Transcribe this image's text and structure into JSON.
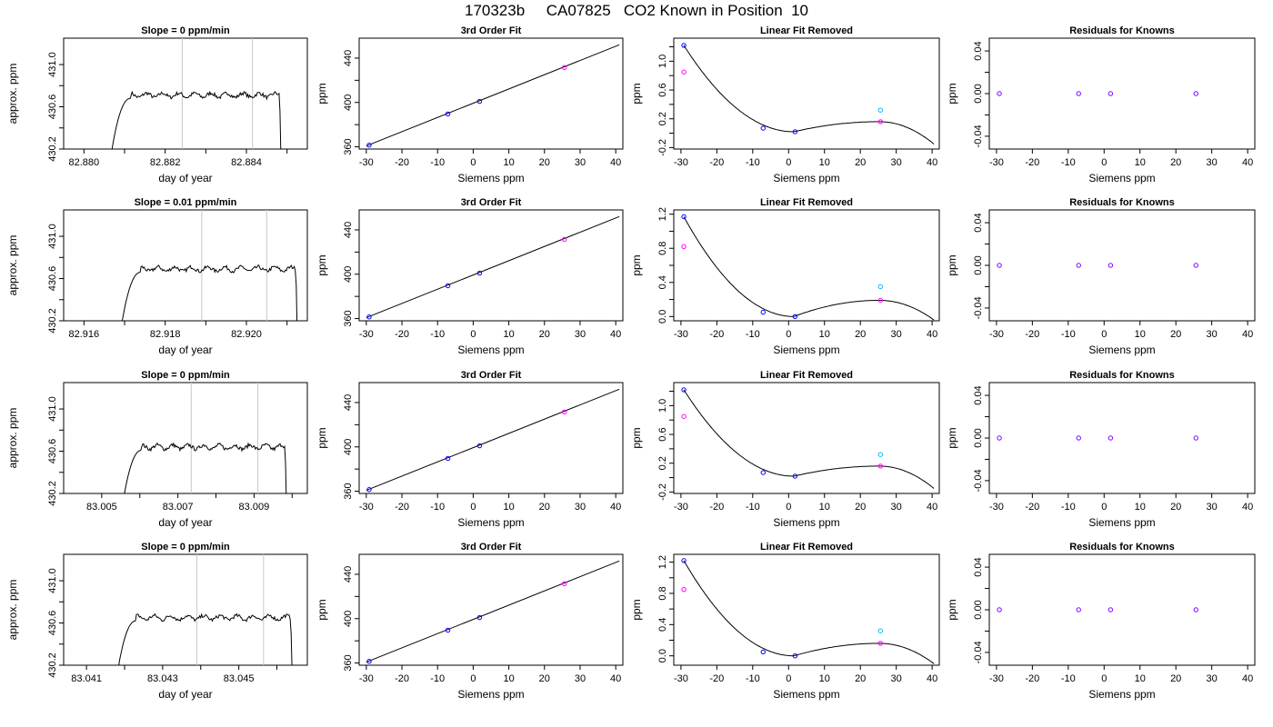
{
  "page": {
    "title": "170323b     CA07825   CO2 Known in Position  10"
  },
  "colors": {
    "line": "#000000",
    "refline": "#c8c8c8",
    "point_blue": "#0000ff",
    "point_magenta": "#ff00ff",
    "point_cyan": "#00bfff",
    "point_purple": "#8000ff"
  },
  "chart_data": [
    {
      "row": 1,
      "col": 1,
      "type": "line",
      "title": "Slope =  0  ppm/min",
      "xlabel": "day of year",
      "ylabel": "approx. ppm",
      "xlim": [
        82.8795,
        82.8855
      ],
      "ylim": [
        430.2,
        431.25
      ],
      "xticks": [
        82.88,
        82.881,
        82.882,
        82.883,
        82.884,
        82.885
      ],
      "xtick_labels": [
        "82.880",
        "",
        "82.882",
        "",
        "82.884",
        ""
      ],
      "yticks": [
        430.2,
        430.4,
        430.6,
        430.8,
        431.0
      ],
      "ytick_labels": [
        "430.2",
        "",
        "430.6",
        "",
        "431.0"
      ],
      "vlines": [
        82.88242,
        82.88415
      ],
      "trace": {
        "x0": 82.88065,
        "rise_end": 82.88115,
        "x_end": 82.88485,
        "level": 430.71
      }
    },
    {
      "row": 1,
      "col": 2,
      "type": "line",
      "title": "3rd Order Fit",
      "xlabel": "Siemens ppm",
      "ylabel": "ppm",
      "xlim": [
        -32,
        42
      ],
      "ylim": [
        358,
        458
      ],
      "xticks": [
        -30,
        -20,
        -10,
        0,
        10,
        20,
        30,
        40
      ],
      "xtick_labels": [
        "-30",
        "-20",
        "-10",
        "0",
        "10",
        "20",
        "30",
        "40"
      ],
      "yticks": [
        360,
        380,
        400,
        420,
        440
      ],
      "ytick_labels": [
        "360",
        "",
        "400",
        "",
        "440"
      ],
      "fit_line": {
        "x": [
          -30,
          41
        ],
        "y": [
          360.8,
          452.0
        ]
      },
      "points": [
        {
          "x": -29.2,
          "y": 361.5,
          "color": "blue"
        },
        {
          "x": -7.1,
          "y": 389.6,
          "color": "blue"
        },
        {
          "x": 1.8,
          "y": 401.0,
          "color": "blue"
        },
        {
          "x": 25.6,
          "y": 431.5,
          "color": "magenta"
        }
      ]
    },
    {
      "row": 1,
      "col": 3,
      "type": "line",
      "title": "Linear Fit Removed",
      "xlabel": "Siemens ppm",
      "ylabel": "ppm",
      "xlim": [
        -32,
        42
      ],
      "ylim": [
        -0.22,
        1.32
      ],
      "xticks": [
        -30,
        -20,
        -10,
        0,
        10,
        20,
        30,
        40
      ],
      "xtick_labels": [
        "-30",
        "-20",
        "-10",
        "0",
        "10",
        "20",
        "30",
        "40"
      ],
      "yticks": [
        -0.2,
        0.0,
        0.2,
        0.4,
        0.6,
        0.8,
        1.0,
        1.2
      ],
      "ytick_labels": [
        "-0.2",
        "",
        "0.2",
        "",
        "0.6",
        "",
        "1.0",
        ""
      ],
      "curve": {
        "a": 1.22,
        "xr": 1.5,
        "yr": 0.02,
        "xp": 25.3,
        "yp": 0.16,
        "xe": 40.5,
        "ye": -0.15
      },
      "points": [
        {
          "x": -29.2,
          "y": 1.22,
          "color": "blue"
        },
        {
          "x": -29.2,
          "y": 0.85,
          "color": "magenta"
        },
        {
          "x": -7.1,
          "y": 0.07,
          "color": "blue"
        },
        {
          "x": 1.8,
          "y": 0.02,
          "color": "blue"
        },
        {
          "x": 25.6,
          "y": 0.32,
          "color": "cyan"
        },
        {
          "x": 25.6,
          "y": 0.16,
          "color": "magenta"
        }
      ]
    },
    {
      "row": 1,
      "col": 4,
      "type": "scatter",
      "title": "Residuals for Knowns",
      "xlabel": "Siemens ppm",
      "ylabel": "ppm",
      "xlim": [
        -32,
        42
      ],
      "ylim": [
        -0.052,
        0.052
      ],
      "xticks": [
        -30,
        -20,
        -10,
        0,
        10,
        20,
        30,
        40
      ],
      "xtick_labels": [
        "-30",
        "-20",
        "-10",
        "0",
        "10",
        "20",
        "30",
        "40"
      ],
      "yticks": [
        -0.04,
        -0.02,
        0.0,
        0.02,
        0.04
      ],
      "ytick_labels": [
        "-0.04",
        "",
        "0.00",
        "",
        "0.04"
      ],
      "points": [
        {
          "x": -29.2,
          "y": 0,
          "color": "purple"
        },
        {
          "x": -7.1,
          "y": 0,
          "color": "purple"
        },
        {
          "x": 1.8,
          "y": 0,
          "color": "purple"
        },
        {
          "x": 25.6,
          "y": 0,
          "color": "purple"
        }
      ]
    },
    {
      "row": 2,
      "col": 1,
      "type": "line",
      "title": "Slope =  0.01  ppm/min",
      "xlabel": "day of year",
      "ylabel": "approx. ppm",
      "xlim": [
        82.9155,
        82.9215
      ],
      "ylim": [
        430.2,
        431.25
      ],
      "xticks": [
        82.916,
        82.917,
        82.918,
        82.919,
        82.92,
        82.921
      ],
      "xtick_labels": [
        "82.916",
        "",
        "82.918",
        "",
        "82.920",
        ""
      ],
      "yticks": [
        430.2,
        430.4,
        430.6,
        430.8,
        431.0
      ],
      "ytick_labels": [
        "430.2",
        "",
        "430.6",
        "",
        "431.0"
      ],
      "vlines": [
        82.9189,
        82.9205
      ],
      "trace": {
        "x0": 82.9169,
        "rise_end": 82.9174,
        "x_end": 82.92125,
        "level": 430.69
      }
    },
    {
      "row": 2,
      "col": 2,
      "type": "line",
      "title": "3rd Order Fit",
      "xlabel": "Siemens ppm",
      "ylabel": "ppm",
      "xlim": [
        -32,
        42
      ],
      "ylim": [
        358,
        458
      ],
      "xticks": [
        -30,
        -20,
        -10,
        0,
        10,
        20,
        30,
        40
      ],
      "xtick_labels": [
        "-30",
        "-20",
        "-10",
        "0",
        "10",
        "20",
        "30",
        "40"
      ],
      "yticks": [
        360,
        380,
        400,
        420,
        440
      ],
      "ytick_labels": [
        "360",
        "",
        "400",
        "",
        "440"
      ],
      "fit_line": {
        "x": [
          -30,
          41
        ],
        "y": [
          360.8,
          452.0
        ]
      },
      "points": [
        {
          "x": -29.2,
          "y": 361.5,
          "color": "blue"
        },
        {
          "x": -7.1,
          "y": 389.6,
          "color": "blue"
        },
        {
          "x": 1.8,
          "y": 401.0,
          "color": "blue"
        },
        {
          "x": 25.6,
          "y": 431.5,
          "color": "magenta"
        }
      ]
    },
    {
      "row": 2,
      "col": 3,
      "type": "line",
      "title": "Linear Fit Removed",
      "xlabel": "Siemens ppm",
      "ylabel": "ppm",
      "xlim": [
        -32,
        42
      ],
      "ylim": [
        -0.05,
        1.25
      ],
      "xticks": [
        -30,
        -20,
        -10,
        0,
        10,
        20,
        30,
        40
      ],
      "xtick_labels": [
        "-30",
        "-20",
        "-10",
        "0",
        "10",
        "20",
        "30",
        "40"
      ],
      "yticks": [
        0.0,
        0.2,
        0.4,
        0.6,
        0.8,
        1.0,
        1.2
      ],
      "ytick_labels": [
        "0.0",
        "",
        "0.4",
        "",
        "0.8",
        "",
        "1.2"
      ],
      "curve": {
        "a": 1.17,
        "xr": 1.5,
        "yr": 0.0,
        "xp": 25.3,
        "yp": 0.19,
        "xe": 40.5,
        "ye": -0.04
      },
      "points": [
        {
          "x": -29.2,
          "y": 1.17,
          "color": "blue"
        },
        {
          "x": -29.2,
          "y": 0.82,
          "color": "magenta"
        },
        {
          "x": -7.1,
          "y": 0.05,
          "color": "blue"
        },
        {
          "x": 1.8,
          "y": 0.0,
          "color": "blue"
        },
        {
          "x": 25.6,
          "y": 0.35,
          "color": "cyan"
        },
        {
          "x": 25.6,
          "y": 0.19,
          "color": "magenta"
        }
      ]
    },
    {
      "row": 2,
      "col": 4,
      "type": "scatter",
      "title": "Residuals for Knowns",
      "xlabel": "Siemens ppm",
      "ylabel": "ppm",
      "xlim": [
        -32,
        42
      ],
      "ylim": [
        -0.052,
        0.052
      ],
      "xticks": [
        -30,
        -20,
        -10,
        0,
        10,
        20,
        30,
        40
      ],
      "xtick_labels": [
        "-30",
        "-20",
        "-10",
        "0",
        "10",
        "20",
        "30",
        "40"
      ],
      "yticks": [
        -0.04,
        -0.02,
        0.0,
        0.02,
        0.04
      ],
      "ytick_labels": [
        "-0.04",
        "",
        "0.00",
        "",
        "0.04"
      ],
      "points": [
        {
          "x": -29.2,
          "y": 0,
          "color": "purple"
        },
        {
          "x": -7.1,
          "y": 0,
          "color": "purple"
        },
        {
          "x": 1.8,
          "y": 0,
          "color": "purple"
        },
        {
          "x": 25.6,
          "y": 0,
          "color": "purple"
        }
      ]
    },
    {
      "row": 3,
      "col": 1,
      "type": "line",
      "title": "Slope =  0  ppm/min",
      "xlabel": "day of year",
      "ylabel": "approx. ppm",
      "xlim": [
        83.004,
        83.0104
      ],
      "ylim": [
        430.2,
        431.25
      ],
      "xticks": [
        83.005,
        83.006,
        83.007,
        83.008,
        83.009,
        83.01
      ],
      "xtick_labels": [
        "83.005",
        "",
        "83.007",
        "",
        "83.009",
        ""
      ],
      "yticks": [
        430.2,
        430.4,
        430.6,
        430.8,
        431.0
      ],
      "ytick_labels": [
        "430.2",
        "",
        "430.6",
        "",
        "431.0"
      ],
      "vlines": [
        83.00735,
        83.0091
      ],
      "trace": {
        "x0": 83.00555,
        "rise_end": 83.00605,
        "x_end": 83.00985,
        "level": 430.64
      }
    },
    {
      "row": 3,
      "col": 2,
      "type": "line",
      "title": "3rd Order Fit",
      "xlabel": "Siemens ppm",
      "ylabel": "ppm",
      "xlim": [
        -32,
        42
      ],
      "ylim": [
        358,
        458
      ],
      "xticks": [
        -30,
        -20,
        -10,
        0,
        10,
        20,
        30,
        40
      ],
      "xtick_labels": [
        "-30",
        "-20",
        "-10",
        "0",
        "10",
        "20",
        "30",
        "40"
      ],
      "yticks": [
        360,
        380,
        400,
        420,
        440
      ],
      "ytick_labels": [
        "360",
        "",
        "400",
        "",
        "440"
      ],
      "fit_line": {
        "x": [
          -30,
          41
        ],
        "y": [
          360.8,
          452.0
        ]
      },
      "points": [
        {
          "x": -29.2,
          "y": 361.5,
          "color": "blue"
        },
        {
          "x": -7.1,
          "y": 389.6,
          "color": "blue"
        },
        {
          "x": 1.8,
          "y": 401.0,
          "color": "blue"
        },
        {
          "x": 25.6,
          "y": 431.5,
          "color": "magenta"
        }
      ]
    },
    {
      "row": 3,
      "col": 3,
      "type": "line",
      "title": "Linear Fit Removed",
      "xlabel": "Siemens ppm",
      "ylabel": "ppm",
      "xlim": [
        -32,
        42
      ],
      "ylim": [
        -0.22,
        1.32
      ],
      "xticks": [
        -30,
        -20,
        -10,
        0,
        10,
        20,
        30,
        40
      ],
      "xtick_labels": [
        "-30",
        "-20",
        "-10",
        "0",
        "10",
        "20",
        "30",
        "40"
      ],
      "yticks": [
        -0.2,
        0.0,
        0.2,
        0.4,
        0.6,
        0.8,
        1.0,
        1.2
      ],
      "ytick_labels": [
        "-0.2",
        "",
        "0.2",
        "",
        "0.6",
        "",
        "1.0",
        ""
      ],
      "curve": {
        "a": 1.22,
        "xr": 1.5,
        "yr": 0.02,
        "xp": 25.3,
        "yp": 0.16,
        "xe": 40.5,
        "ye": -0.15
      },
      "points": [
        {
          "x": -29.2,
          "y": 1.22,
          "color": "blue"
        },
        {
          "x": -29.2,
          "y": 0.85,
          "color": "magenta"
        },
        {
          "x": -7.1,
          "y": 0.07,
          "color": "blue"
        },
        {
          "x": 1.8,
          "y": 0.02,
          "color": "blue"
        },
        {
          "x": 25.6,
          "y": 0.32,
          "color": "cyan"
        },
        {
          "x": 25.6,
          "y": 0.16,
          "color": "magenta"
        }
      ]
    },
    {
      "row": 3,
      "col": 4,
      "type": "scatter",
      "title": "Residuals for Knowns",
      "xlabel": "Siemens ppm",
      "ylabel": "ppm",
      "xlim": [
        -32,
        42
      ],
      "ylim": [
        -0.052,
        0.052
      ],
      "xticks": [
        -30,
        -20,
        -10,
        0,
        10,
        20,
        30,
        40
      ],
      "xtick_labels": [
        "-30",
        "-20",
        "-10",
        "0",
        "10",
        "20",
        "30",
        "40"
      ],
      "yticks": [
        -0.04,
        -0.02,
        0.0,
        0.02,
        0.04
      ],
      "ytick_labels": [
        "-0.04",
        "",
        "0.00",
        "",
        "0.04"
      ],
      "points": [
        {
          "x": -29.2,
          "y": 0,
          "color": "purple"
        },
        {
          "x": -7.1,
          "y": 0,
          "color": "purple"
        },
        {
          "x": 1.8,
          "y": 0,
          "color": "purple"
        },
        {
          "x": 25.6,
          "y": 0,
          "color": "purple"
        }
      ]
    },
    {
      "row": 4,
      "col": 1,
      "type": "line",
      "title": "Slope =  0  ppm/min",
      "xlabel": "day of year",
      "ylabel": "approx. ppm",
      "xlim": [
        83.0404,
        83.0468
      ],
      "ylim": [
        430.2,
        431.25
      ],
      "xticks": [
        83.041,
        83.042,
        83.043,
        83.044,
        83.045,
        83.046
      ],
      "xtick_labels": [
        "83.041",
        "",
        "83.043",
        "",
        "83.045",
        ""
      ],
      "yticks": [
        430.2,
        430.4,
        430.6,
        430.8,
        431.0
      ],
      "ytick_labels": [
        "430.2",
        "",
        "430.6",
        "",
        "431.0"
      ],
      "vlines": [
        83.0439,
        83.04565
      ],
      "trace": {
        "x0": 83.0418,
        "rise_end": 83.0423,
        "x_end": 83.0464,
        "level": 430.65
      }
    },
    {
      "row": 4,
      "col": 2,
      "type": "line",
      "title": "3rd Order Fit",
      "xlabel": "Siemens ppm",
      "ylabel": "ppm",
      "xlim": [
        -32,
        42
      ],
      "ylim": [
        358,
        458
      ],
      "xticks": [
        -30,
        -20,
        -10,
        0,
        10,
        20,
        30,
        40
      ],
      "xtick_labels": [
        "-30",
        "-20",
        "-10",
        "0",
        "10",
        "20",
        "30",
        "40"
      ],
      "yticks": [
        360,
        380,
        400,
        420,
        440
      ],
      "ytick_labels": [
        "360",
        "",
        "400",
        "",
        "440"
      ],
      "fit_line": {
        "x": [
          -30,
          41
        ],
        "y": [
          360.8,
          452.0
        ]
      },
      "points": [
        {
          "x": -29.2,
          "y": 361.5,
          "color": "blue"
        },
        {
          "x": -7.1,
          "y": 389.6,
          "color": "blue"
        },
        {
          "x": 1.8,
          "y": 401.0,
          "color": "blue"
        },
        {
          "x": 25.6,
          "y": 431.5,
          "color": "magenta"
        }
      ]
    },
    {
      "row": 4,
      "col": 3,
      "type": "line",
      "title": "Linear Fit Removed",
      "xlabel": "Siemens ppm",
      "ylabel": "ppm",
      "xlim": [
        -32,
        42
      ],
      "ylim": [
        -0.12,
        1.3
      ],
      "xticks": [
        -30,
        -20,
        -10,
        0,
        10,
        20,
        30,
        40
      ],
      "xtick_labels": [
        "-30",
        "-20",
        "-10",
        "0",
        "10",
        "20",
        "30",
        "40"
      ],
      "yticks": [
        0.0,
        0.2,
        0.4,
        0.6,
        0.8,
        1.0,
        1.2
      ],
      "ytick_labels": [
        "0.0",
        "",
        "0.4",
        "",
        "0.8",
        "",
        "1.2"
      ],
      "curve": {
        "a": 1.22,
        "xr": 1.5,
        "yr": 0.0,
        "xp": 25.3,
        "yp": 0.16,
        "xe": 40.5,
        "ye": -0.1
      },
      "points": [
        {
          "x": -29.2,
          "y": 1.22,
          "color": "blue"
        },
        {
          "x": -29.2,
          "y": 0.85,
          "color": "magenta"
        },
        {
          "x": -7.1,
          "y": 0.05,
          "color": "blue"
        },
        {
          "x": 1.8,
          "y": 0.0,
          "color": "blue"
        },
        {
          "x": 25.6,
          "y": 0.32,
          "color": "cyan"
        },
        {
          "x": 25.6,
          "y": 0.16,
          "color": "magenta"
        }
      ]
    },
    {
      "row": 4,
      "col": 4,
      "type": "scatter",
      "title": "Residuals for Knowns",
      "xlabel": "Siemens ppm",
      "ylabel": "ppm",
      "xlim": [
        -32,
        42
      ],
      "ylim": [
        -0.052,
        0.052
      ],
      "xticks": [
        -30,
        -20,
        -10,
        0,
        10,
        20,
        30,
        40
      ],
      "xtick_labels": [
        "-30",
        "-20",
        "-10",
        "0",
        "10",
        "20",
        "30",
        "40"
      ],
      "yticks": [
        -0.04,
        -0.02,
        0.0,
        0.02,
        0.04
      ],
      "ytick_labels": [
        "-0.04",
        "",
        "0.00",
        "",
        "0.04"
      ],
      "points": [
        {
          "x": -29.2,
          "y": 0,
          "color": "purple"
        },
        {
          "x": -7.1,
          "y": 0,
          "color": "purple"
        },
        {
          "x": 1.8,
          "y": 0,
          "color": "purple"
        },
        {
          "x": 25.6,
          "y": 0,
          "color": "purple"
        }
      ]
    }
  ]
}
